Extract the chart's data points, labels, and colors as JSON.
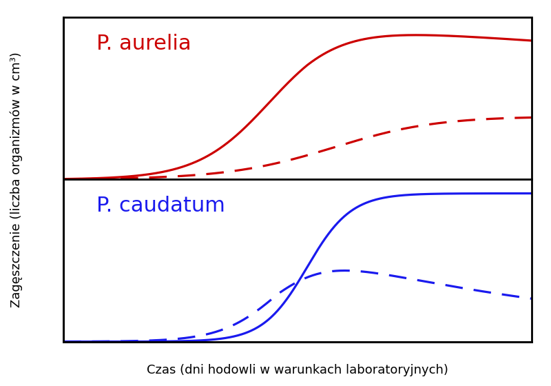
{
  "title_top": "P. aurelia",
  "title_bottom": "P. caudatum",
  "xlabel": "Czas (dni hodowli w warunkach laboratoryjnych)",
  "ylabel": "Zagęszczenie (liczba organizmów w cm³)",
  "color_top": "#cc0000",
  "color_bottom": "#1a1aee",
  "background_color": "#ffffff",
  "line_width": 2.3,
  "title_fontsize": 22,
  "label_fontsize": 13,
  "border_lw": 2.0
}
